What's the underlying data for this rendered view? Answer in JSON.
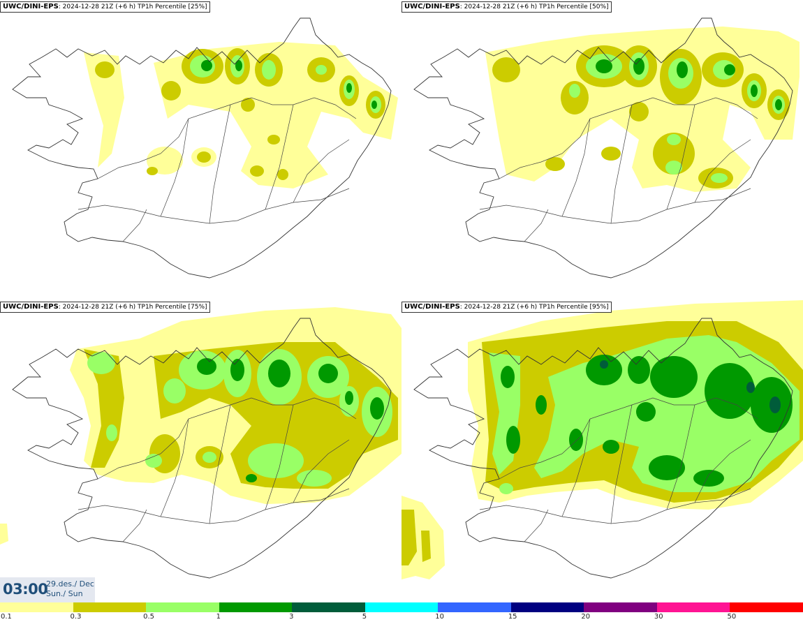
{
  "panels": [
    {
      "model": "UWC/DINI-EPS",
      "info": ": 2024-12-28 21Z (+6 h) TP1h Percentile [25%]"
    },
    {
      "model": "UWC/DINI-EPS",
      "info": ": 2024-12-28 21Z (+6 h) TP1h Percentile [50%]"
    },
    {
      "model": "UWC/DINI-EPS",
      "info": ": 2024-12-28 21Z (+6 h) TP1h Percentile [75%]"
    },
    {
      "model": "UWC/DINI-EPS",
      "info": ": 2024-12-28 21Z (+6 h) TP1h Percentile [95%]"
    }
  ],
  "time": {
    "clock": "03:00",
    "date": "29.des./ Dec",
    "day": "Sun./ Sun"
  },
  "legend": {
    "colors": [
      "#ffff99",
      "#cccc00",
      "#99ff66",
      "#009900",
      "#005c3a",
      "#00ffff",
      "#3366ff",
      "#000080",
      "#800080",
      "#ff1493",
      "#ff0000"
    ],
    "ticks": [
      "0.1",
      "0.3",
      "0.5",
      "1",
      "3",
      "5",
      "10",
      "15",
      "20",
      "30",
      "50"
    ]
  },
  "colors": {
    "level1": "#ffff99",
    "level2": "#cccc00",
    "level3": "#99ff66",
    "level4": "#009900",
    "level5": "#005c3a",
    "coast": "#333333",
    "timeText": "#1f4e79"
  }
}
